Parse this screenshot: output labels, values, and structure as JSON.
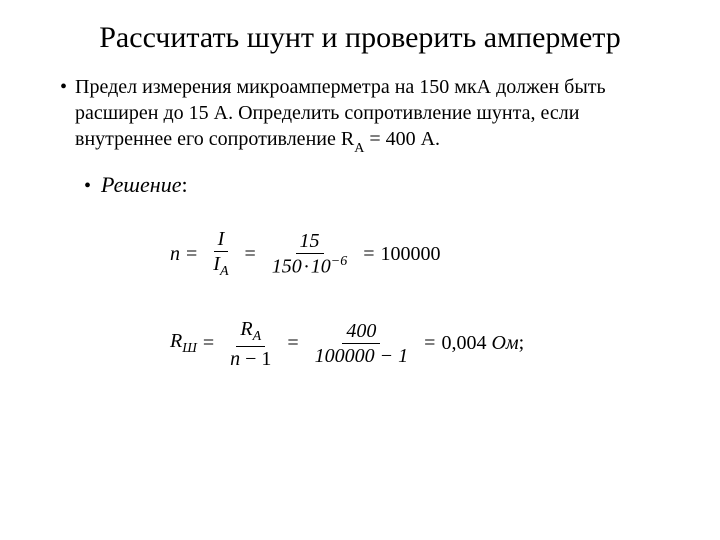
{
  "title": {
    "text": "Рассчитать шунт и проверить амперметр",
    "fontsize": 30,
    "color": "#000000"
  },
  "problem": {
    "bullet": "•",
    "text_part1": "Предел измерения микроамперметра на 150 мкА должен быть расширен до 15 А. Определить сопротивление шунта, если внутреннее его сопротивление R",
    "text_sub": "А",
    "text_part2": " = 400 А.",
    "fontsize": 20
  },
  "solution": {
    "bullet": "•",
    "label": "Решение",
    "colon": ":",
    "fontsize": 22
  },
  "formula1": {
    "lhs_var": "n",
    "frac1_num": "I",
    "frac1_den_var": "I",
    "frac1_den_sub": "А",
    "frac2_num": "15",
    "frac2_den_a": "150",
    "frac2_den_dot": "·",
    "frac2_den_b": "10",
    "frac2_den_exp": "−6",
    "result": "100000"
  },
  "formula2": {
    "lhs_var": "R",
    "lhs_sub": "Ш",
    "frac1_num_var": "R",
    "frac1_num_sub": "А",
    "frac1_den_var": "n",
    "frac1_den_rest": " − 1",
    "frac2_num": "400",
    "frac2_den": "100000 − 1",
    "result": "0,004",
    "unit": " Ом",
    "semicolon": ";"
  },
  "style": {
    "background": "#ffffff",
    "text_color": "#000000",
    "font_family": "Times New Roman"
  }
}
